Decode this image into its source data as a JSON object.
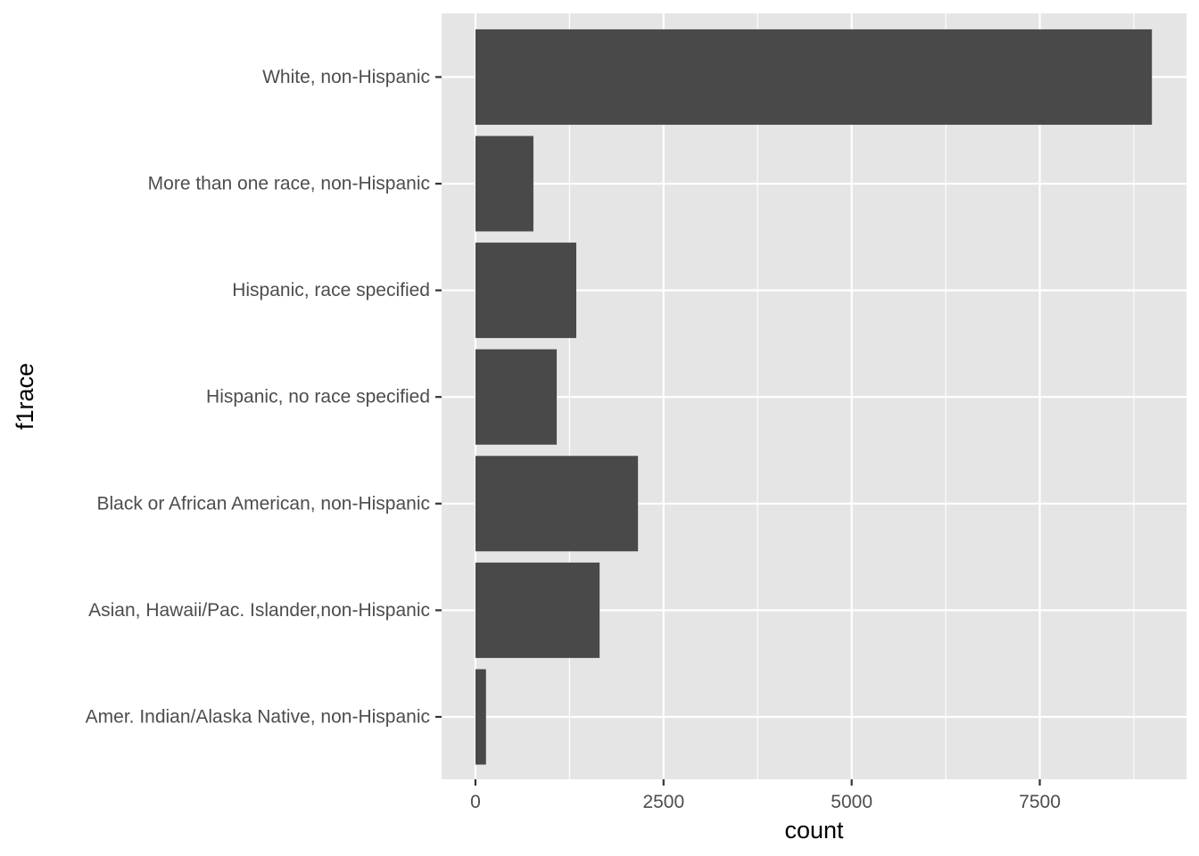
{
  "chart_data": {
    "type": "bar",
    "orientation": "horizontal",
    "categories": [
      "Amer. Indian/Alaska Native, non-Hispanic",
      "Asian, Hawaii/Pac. Islander,non-Hispanic",
      "Black or African American, non-Hispanic",
      "Hispanic, no race specified",
      "Hispanic, race specified",
      "More than one race, non-Hispanic",
      "White, non-Hispanic"
    ],
    "values": [
      140,
      1650,
      2160,
      1080,
      1340,
      770,
      8990
    ],
    "xlabel": "count",
    "ylabel": "f1race",
    "xlim": [
      -450,
      9450
    ],
    "x_ticks": [
      0,
      2500,
      5000,
      7500
    ],
    "x_tick_labels": [
      "0",
      "2500",
      "5000",
      "7500"
    ],
    "x_minor_ticks": [
      1250,
      3750,
      6250,
      8750
    ],
    "grid": true,
    "legend": "none",
    "colors": {
      "bar": "#494949",
      "panel": "#e5e5e5",
      "grid": "#ffffff"
    }
  }
}
